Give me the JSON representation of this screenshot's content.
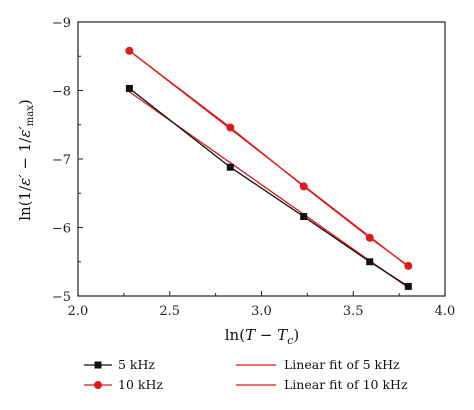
{
  "chart_data": {
    "type": "line",
    "xlabel_parts": [
      "ln(",
      "T",
      " − ",
      "T",
      "c",
      ")"
    ],
    "ylabel_parts": [
      "ln(1/",
      "ε′",
      " − 1/",
      "ε′",
      "max",
      ")"
    ],
    "xlim": [
      2.0,
      4.0
    ],
    "ylim": [
      -5,
      -9
    ],
    "y_inverted": true,
    "x_ticks": [
      2.0,
      2.5,
      3.0,
      3.5,
      4.0
    ],
    "x_tick_labels": [
      "2.0",
      "2.5",
      "3.0",
      "3.5",
      "4.0"
    ],
    "y_ticks": [
      -5,
      -6,
      -7,
      -8,
      -9
    ],
    "y_tick_labels": [
      "−5",
      "−6",
      "−7",
      "−8",
      "−9"
    ],
    "grid": false,
    "legend_position": "below",
    "series": [
      {
        "name": "5 kHz",
        "kind": "data",
        "marker": "square",
        "color": "#111111",
        "x": [
          2.28,
          2.83,
          3.23,
          3.59,
          3.8
        ],
        "y": [
          -8.03,
          -6.88,
          -6.16,
          -5.5,
          -5.14
        ]
      },
      {
        "name": "10 kHz",
        "kind": "data",
        "marker": "circle",
        "color": "#dd1b1b",
        "x": [
          2.28,
          2.83,
          3.23,
          3.59,
          3.8
        ],
        "y": [
          -8.58,
          -7.46,
          -6.6,
          -5.85,
          -5.44
        ]
      },
      {
        "name": "Linear fit of 5 kHz",
        "kind": "fit",
        "color": "#dd1b1b",
        "x": [
          2.28,
          3.8
        ],
        "y": [
          -7.98,
          -5.12
        ]
      },
      {
        "name": "Linear fit of 10 kHz",
        "kind": "fit",
        "color": "#dd1b1b",
        "x": [
          2.28,
          3.8
        ],
        "y": [
          -8.58,
          -5.43
        ]
      }
    ]
  }
}
